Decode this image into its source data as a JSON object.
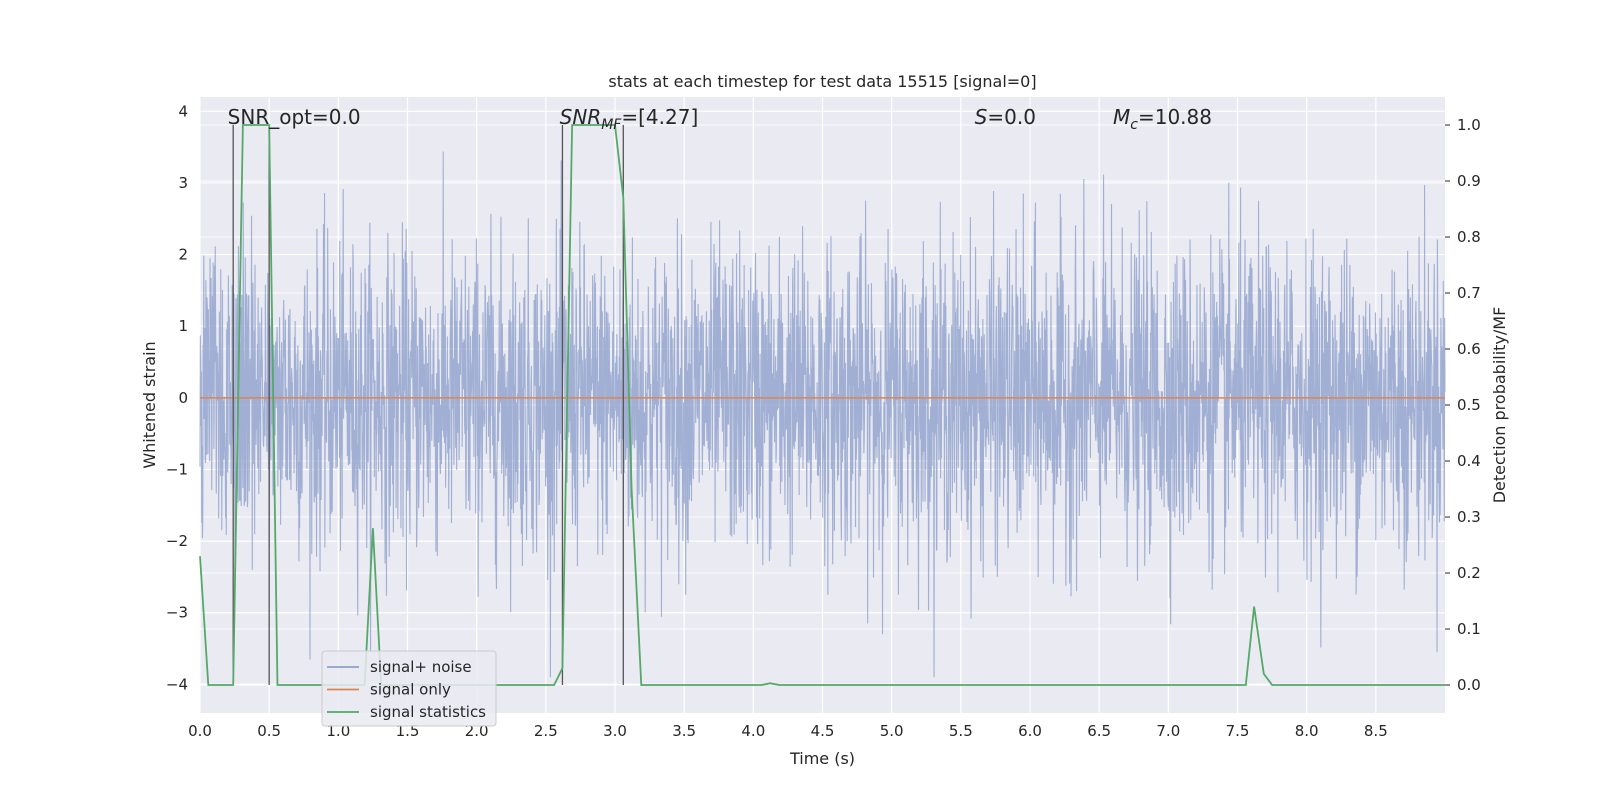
{
  "chart_data": {
    "type": "line",
    "title": "stats at each timestep for test data 15515 [signal=0]",
    "xlabel": "Time (s)",
    "ylabel": "Whitened strain",
    "y2label": "Detection probability/MF",
    "xlim": [
      0,
      9.0
    ],
    "ylim": [
      -4.4,
      4.2
    ],
    "y2lim": [
      -0.05,
      1.05
    ],
    "x_ticks": [
      0.0,
      0.5,
      1.0,
      1.5,
      2.0,
      2.5,
      3.0,
      3.5,
      4.0,
      4.5,
      5.0,
      5.5,
      6.0,
      6.5,
      7.0,
      7.5,
      8.0,
      8.5
    ],
    "x_tick_labels": [
      "0.0",
      "0.5",
      "1.0",
      "1.5",
      "2.0",
      "2.5",
      "3.0",
      "3.5",
      "4.0",
      "4.5",
      "5.0",
      "5.5",
      "6.0",
      "6.5",
      "7.0",
      "7.5",
      "8.0",
      "8.5"
    ],
    "y_ticks": [
      4,
      3,
      2,
      1,
      0,
      -1,
      -2,
      -3,
      -4
    ],
    "y_tick_labels": [
      "4",
      "3",
      "2",
      "1",
      "0",
      "−1",
      "−2",
      "−3",
      "−4"
    ],
    "y2_ticks": [
      1.0,
      0.9,
      0.8,
      0.7,
      0.6,
      0.5,
      0.4,
      0.3,
      0.2,
      0.1,
      0.0
    ],
    "y2_tick_labels": [
      "1.0",
      "0.9",
      "0.8",
      "0.7",
      "0.6",
      "0.5",
      "0.4",
      "0.3",
      "0.2",
      "0.1",
      "0.0"
    ],
    "grid": true,
    "legend_position": "lower-left",
    "series": [
      {
        "name": "signal+ noise",
        "color": "#8da0cb",
        "axis": "left",
        "noise_sigma": 1.0,
        "duration_s": 9.0,
        "note_values": "dense whitened noise trace between about -3.8 and 3.8"
      },
      {
        "name": "signal only",
        "color": "#dd8452",
        "axis": "left",
        "x": [
          0.0,
          9.0
        ],
        "values": [
          0.0,
          0.0
        ]
      },
      {
        "name": "signal statistics",
        "color": "#55a868",
        "axis": "right",
        "x": [
          0.0,
          0.06,
          0.12,
          0.24,
          0.31,
          0.37,
          0.44,
          0.5,
          0.56,
          0.62,
          0.69,
          0.75,
          0.81,
          0.88,
          0.94,
          1.0,
          1.06,
          1.12,
          1.19,
          1.25,
          1.31,
          1.37,
          1.44,
          1.5,
          1.75,
          2.0,
          2.25,
          2.5,
          2.56,
          2.62,
          2.69,
          2.75,
          2.81,
          2.87,
          2.94,
          3.0,
          3.06,
          3.12,
          3.19,
          3.25,
          3.5,
          3.75,
          4.0,
          4.06,
          4.12,
          4.19,
          4.25,
          4.5,
          4.75,
          5.0,
          5.25,
          5.5,
          5.75,
          6.0,
          6.25,
          6.5,
          6.75,
          7.0,
          7.25,
          7.5,
          7.56,
          7.62,
          7.69,
          7.75,
          7.81,
          8.0,
          8.5,
          9.0
        ],
        "values": [
          0.23,
          0.0,
          0.0,
          0.0,
          1.0,
          1.0,
          1.0,
          1.0,
          0.0,
          0.0,
          0.0,
          0.0,
          0.0,
          0.0,
          0.0,
          0.0,
          0.0,
          0.0,
          0.0,
          0.28,
          0.0,
          0.0,
          0.0,
          0.0,
          0.0,
          0.0,
          0.0,
          0.0,
          0.0,
          0.03,
          1.0,
          1.0,
          1.0,
          1.0,
          1.0,
          1.0,
          0.87,
          0.35,
          0.0,
          0.0,
          0.0,
          0.0,
          0.0,
          0.0,
          0.003,
          0.0,
          0.0,
          0.0,
          0.0,
          0.0,
          0.0,
          0.0,
          0.0,
          0.0,
          0.0,
          0.0,
          0.0,
          0.0,
          0.0,
          0.0,
          0.0,
          0.14,
          0.02,
          0.0,
          0.0,
          0.0,
          0.0,
          0.0
        ]
      }
    ],
    "vlines": [
      0.24,
      0.5,
      2.62,
      3.06
    ],
    "annotations": [
      {
        "id": "snr_opt",
        "text": "SNR_opt=0.0",
        "x": 0.2
      },
      {
        "id": "snr_mf",
        "text": "SNR",
        "sub": "MF",
        "rest": "=[4.27]",
        "x": 2.6
      },
      {
        "id": "s_val",
        "text": "S",
        "rest": "=0.0",
        "x": 5.6
      },
      {
        "id": "mc_val",
        "text": "M",
        "sub": "c",
        "rest": "=10.88",
        "x": 6.6
      }
    ],
    "background_color": "#eaeaf2",
    "grid_color": "#ffffff"
  }
}
